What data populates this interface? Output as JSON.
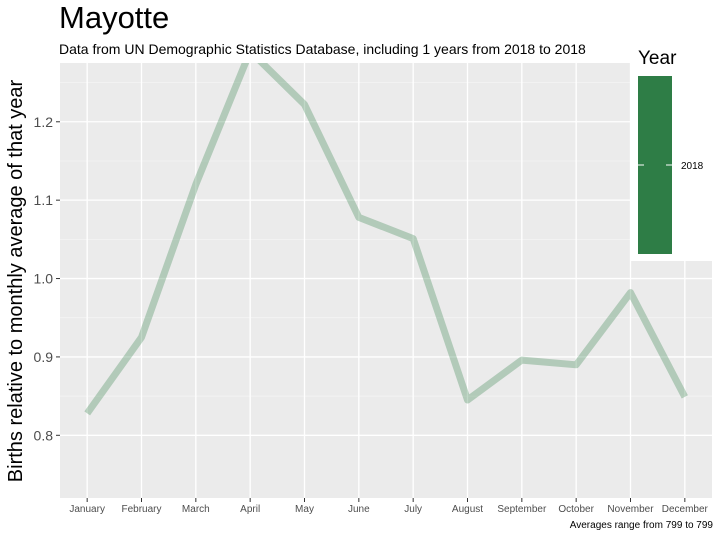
{
  "chart_data": {
    "type": "line",
    "title": "Mayotte",
    "subtitle": "Data from UN Demographic Statistics Database, including 1 years from 2018 to 2018",
    "caption": "Averages range from 799 to 799",
    "ylabel": "Births relative to monthly average of that year",
    "xlabel": "",
    "categories": [
      "January",
      "February",
      "March",
      "April",
      "May",
      "June",
      "July",
      "August",
      "September",
      "October",
      "November",
      "December"
    ],
    "ylim": [
      0.72,
      1.275
    ],
    "yticks": [
      0.8,
      0.9,
      1.0,
      1.1,
      1.2
    ],
    "ytick_labels": [
      "0.8",
      "0.9",
      "1.0",
      "1.1",
      "1.2"
    ],
    "grid": true,
    "legend": {
      "title": "Year",
      "position": "right",
      "labels": [
        "2018"
      ]
    },
    "series": [
      {
        "name": "2018",
        "color": "#2e7d46",
        "values": [
          0.828,
          0.925,
          1.12,
          1.29,
          1.222,
          1.078,
          1.051,
          0.845,
          0.896,
          0.89,
          0.982,
          0.849
        ]
      }
    ]
  }
}
